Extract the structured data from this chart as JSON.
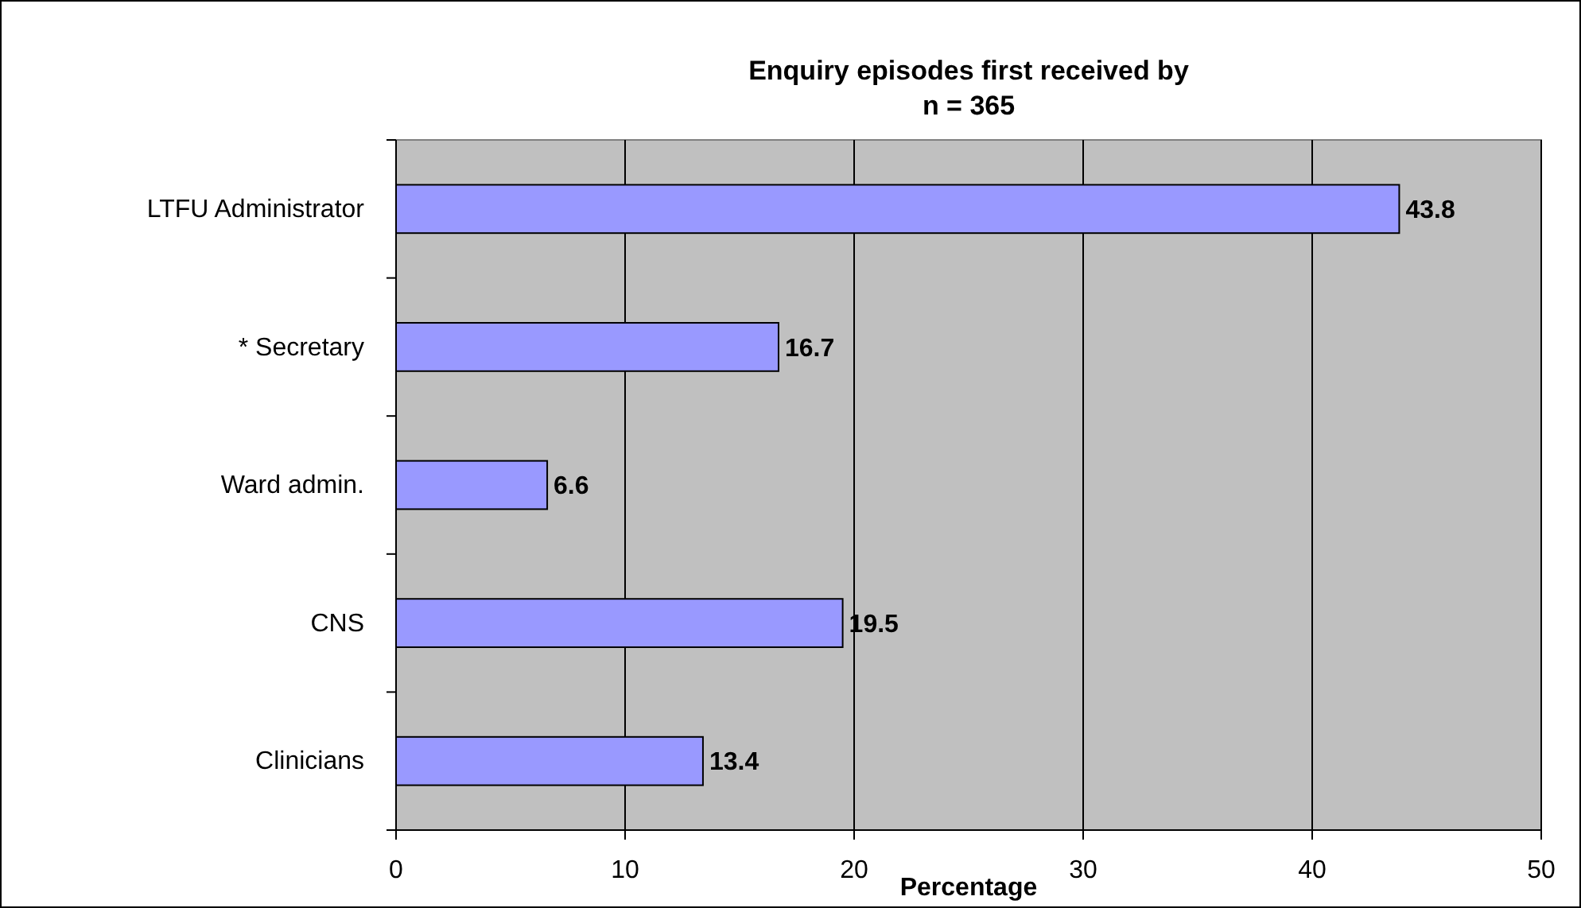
{
  "chart_data": {
    "type": "bar",
    "orientation": "horizontal",
    "title": "Enquiry episodes first received by",
    "subtitle": "n = 365",
    "xlabel": "Percentage",
    "categories": [
      "LTFU Administrator",
      "* Secretary",
      "Ward admin.",
      "CNS",
      "Clinicians"
    ],
    "values": [
      43.8,
      16.7,
      6.6,
      19.5,
      13.4
    ],
    "color": "#9999ff",
    "xlim": [
      0,
      50
    ],
    "xticks": [
      0,
      10,
      20,
      30,
      40,
      50
    ],
    "grid": "x",
    "data_labels": true
  }
}
